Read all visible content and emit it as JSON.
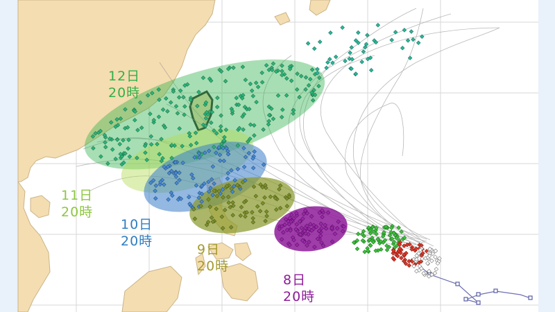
{
  "colors": {
    "ocean": "#ffffff",
    "land": "#f4ddb0",
    "day8": "#8e1b9a",
    "day9": "#8f9a2c",
    "day10": "#2f7dc0",
    "day11": "#8dc63f",
    "day12": "#2fb04a",
    "taiwan_outline": "#333333"
  },
  "forecast_labels": [
    {
      "id": "day12",
      "day": "12日",
      "time": "20時"
    },
    {
      "id": "day11",
      "day": "11日",
      "time": "20時"
    },
    {
      "id": "day10",
      "day": "10日",
      "time": "20時"
    },
    {
      "id": "day9",
      "day": "9日",
      "time": "20時"
    },
    {
      "id": "day8",
      "day": "8日",
      "time": "20時"
    }
  ]
}
